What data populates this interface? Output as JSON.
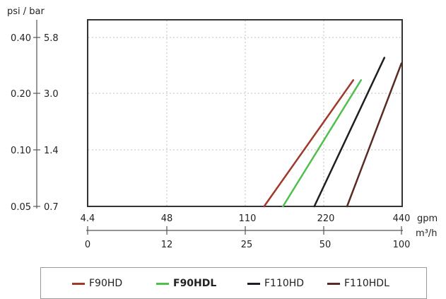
{
  "chart_data": {
    "type": "line",
    "title": "",
    "y_unit_label": "psi / bar",
    "y_ticks": [
      {
        "psi": "0.40",
        "bar": "5.8"
      },
      {
        "psi": "0.20",
        "bar": "3.0"
      },
      {
        "psi": "0.10",
        "bar": "1.4"
      },
      {
        "psi": "0.05",
        "bar": "0.7"
      }
    ],
    "x_ticks_gpm": [
      "4.4",
      "48",
      "110",
      "220",
      "440"
    ],
    "x_unit_gpm": "gpm",
    "x_ticks_m3h": [
      "0",
      "12",
      "25",
      "50",
      "100"
    ],
    "x_unit_m3h": "m³/h",
    "x_range_m3h": [
      0,
      100
    ],
    "y_range_bar": [
      0.7,
      5.8
    ],
    "grid": true,
    "legend_position": "bottom",
    "series": [
      {
        "name": "F90HD",
        "color": "#a0382c",
        "x_m3h": [
          31,
          69
        ],
        "y_bar": [
          0.7,
          3.4
        ]
      },
      {
        "name": "F90HDL",
        "color": "#4fbf4f",
        "x_m3h": [
          37,
          74
        ],
        "y_bar": [
          0.7,
          3.4
        ]
      },
      {
        "name": "F110HD",
        "color": "#1e1e24",
        "x_m3h": [
          47,
          89
        ],
        "y_bar": [
          0.7,
          4.5
        ]
      },
      {
        "name": "F110HDL",
        "color": "#5a2a24",
        "x_m3h": [
          65,
          100
        ],
        "y_bar": [
          0.7,
          4.2
        ]
      }
    ]
  }
}
